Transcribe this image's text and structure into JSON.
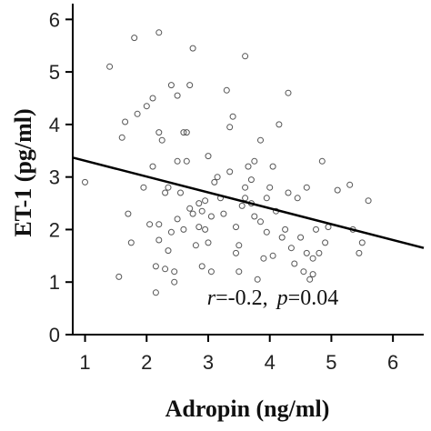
{
  "chart_data": {
    "type": "scatter",
    "title": "",
    "xlabel": "Adropin (ng/ml)",
    "ylabel": "ET-1  (pg/ml)",
    "xlim": [
      0.8,
      6.5
    ],
    "ylim": [
      0,
      6.3
    ],
    "xticks": [
      "1",
      "2",
      "3",
      "4",
      "5",
      "6"
    ],
    "yticks": [
      "0",
      "1",
      "2",
      "3",
      "4",
      "5",
      "6"
    ],
    "grid": false,
    "annotation": {
      "r_symbol": "r",
      "r_value": "=-0.2,",
      "p_symbol": "p",
      "p_value": "=0.04"
    },
    "regression": {
      "x": [
        0.8,
        6.5
      ],
      "y": [
        3.37,
        1.65
      ]
    },
    "colors": {
      "marker": "#555555",
      "line": "#000000",
      "axis": "#000000"
    },
    "series": [
      {
        "points": [
          [
            1.0,
            2.9
          ],
          [
            1.4,
            5.1
          ],
          [
            1.7,
            2.3
          ],
          [
            1.8,
            5.65
          ],
          [
            2.2,
            5.75
          ],
          [
            1.55,
            1.1
          ],
          [
            1.85,
            4.2
          ],
          [
            2.0,
            4.35
          ],
          [
            1.65,
            4.05
          ],
          [
            1.6,
            3.75
          ],
          [
            1.75,
            1.75
          ],
          [
            1.95,
            2.8
          ],
          [
            2.1,
            4.5
          ],
          [
            2.2,
            3.85
          ],
          [
            2.25,
            3.7
          ],
          [
            2.4,
            4.75
          ],
          [
            2.1,
            3.2
          ],
          [
            2.05,
            2.1
          ],
          [
            2.2,
            1.8
          ],
          [
            2.3,
            2.7
          ],
          [
            2.35,
            2.8
          ],
          [
            2.2,
            2.1
          ],
          [
            2.15,
            1.3
          ],
          [
            2.3,
            1.25
          ],
          [
            2.35,
            1.6
          ],
          [
            2.4,
            1.95
          ],
          [
            2.15,
            0.8
          ],
          [
            2.5,
            2.2
          ],
          [
            2.45,
            1.2
          ],
          [
            2.6,
            2.0
          ],
          [
            2.55,
            2.7
          ],
          [
            2.5,
            3.3
          ],
          [
            2.6,
            3.85
          ],
          [
            2.5,
            4.55
          ],
          [
            2.65,
            3.85
          ],
          [
            2.7,
            4.75
          ],
          [
            2.75,
            5.45
          ],
          [
            2.7,
            2.4
          ],
          [
            2.8,
            1.7
          ],
          [
            2.75,
            2.3
          ],
          [
            2.85,
            2.5
          ],
          [
            2.9,
            1.3
          ],
          [
            2.95,
            2.0
          ],
          [
            3.0,
            1.75
          ],
          [
            3.05,
            1.2
          ],
          [
            2.95,
            2.55
          ],
          [
            3.0,
            3.4
          ],
          [
            3.05,
            2.25
          ],
          [
            2.65,
            3.3
          ],
          [
            2.85,
            2.05
          ],
          [
            3.1,
            2.9
          ],
          [
            3.2,
            2.6
          ],
          [
            3.25,
            2.3
          ],
          [
            3.35,
            3.1
          ],
          [
            3.3,
            4.65
          ],
          [
            3.4,
            4.15
          ],
          [
            3.35,
            3.95
          ],
          [
            3.45,
            2.05
          ],
          [
            3.5,
            1.7
          ],
          [
            3.55,
            2.45
          ],
          [
            3.6,
            2.6
          ],
          [
            3.6,
            5.3
          ],
          [
            3.65,
            3.2
          ],
          [
            3.6,
            2.8
          ],
          [
            3.7,
            2.95
          ],
          [
            3.7,
            2.5
          ],
          [
            3.75,
            2.25
          ],
          [
            3.8,
            1.05
          ],
          [
            3.85,
            2.15
          ],
          [
            3.85,
            3.7
          ],
          [
            3.9,
            1.45
          ],
          [
            3.95,
            2.6
          ],
          [
            3.95,
            1.95
          ],
          [
            4.0,
            2.8
          ],
          [
            4.05,
            1.5
          ],
          [
            4.1,
            2.35
          ],
          [
            4.15,
            4.0
          ],
          [
            4.2,
            1.85
          ],
          [
            4.25,
            2.0
          ],
          [
            4.3,
            2.7
          ],
          [
            4.3,
            4.6
          ],
          [
            4.35,
            1.65
          ],
          [
            4.4,
            1.35
          ],
          [
            4.45,
            2.6
          ],
          [
            4.5,
            1.85
          ],
          [
            4.55,
            1.2
          ],
          [
            4.6,
            2.8
          ],
          [
            4.65,
            1.05
          ],
          [
            4.7,
            1.45
          ],
          [
            4.75,
            2.0
          ],
          [
            4.8,
            1.55
          ],
          [
            4.85,
            3.3
          ],
          [
            4.9,
            1.75
          ],
          [
            4.95,
            2.05
          ],
          [
            5.1,
            2.75
          ],
          [
            5.3,
            2.85
          ],
          [
            5.35,
            2.0
          ],
          [
            5.45,
            1.55
          ],
          [
            5.5,
            1.75
          ],
          [
            5.6,
            2.55
          ],
          [
            4.05,
            3.2
          ],
          [
            3.75,
            3.3
          ],
          [
            3.15,
            3.0
          ],
          [
            3.45,
            1.55
          ],
          [
            2.45,
            1.0
          ],
          [
            2.9,
            2.35
          ],
          [
            3.5,
            1.2
          ],
          [
            4.7,
            1.15
          ],
          [
            4.6,
            1.55
          ]
        ]
      }
    ]
  }
}
